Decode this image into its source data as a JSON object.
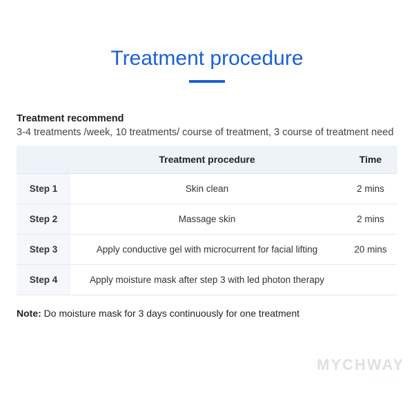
{
  "title": "Treatment procedure",
  "title_color": "#1a5fd6",
  "underline_color": "#1a5fd6",
  "recommend": {
    "label": "Treatment recommend",
    "text": "3-4 treatments /week, 10 treatments/ course of treatment, 3 course of treatment need"
  },
  "table": {
    "columns": [
      "",
      "Treatment procedure",
      "Time"
    ],
    "header_bg": "#eef2f9",
    "step_col_bg": "#f5f7fb",
    "border_color": "#e4e8f0",
    "rows": [
      {
        "step": "Step 1",
        "proc": "Skin clean",
        "time": "2 mins"
      },
      {
        "step": "Step 2",
        "proc": "Massage skin",
        "time": "2 mins"
      },
      {
        "step": "Step 3",
        "proc": "Apply conductive gel with microcurrent for facial lifting",
        "time": "20 mins"
      },
      {
        "step": "Step 4",
        "proc": "Apply moisture mask after step 3 with led photon therapy",
        "time": ""
      }
    ]
  },
  "note": {
    "label": "Note:",
    "text": " Do moisture mask for 3 days continuously for one treatment"
  },
  "watermark": {
    "main": "MYCHWAY",
    "sub": "····"
  }
}
